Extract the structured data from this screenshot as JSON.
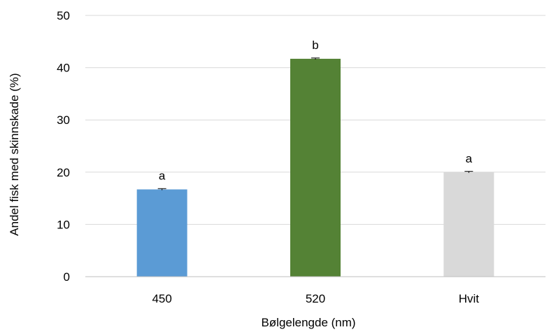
{
  "chart_data": {
    "type": "bar",
    "title": "",
    "xlabel": "Bølgelengde (nm)",
    "ylabel": "Andel fisk med skinnskade (%)",
    "ylim": [
      0,
      50
    ],
    "yticks": [
      0,
      10,
      20,
      30,
      40,
      50
    ],
    "grid": true,
    "categories": [
      "450",
      "520",
      "Hvit"
    ],
    "values": [
      16.7,
      41.7,
      20.0
    ],
    "errors": [
      0.15,
      0.15,
      0.15
    ],
    "significance_labels": [
      "a",
      "b",
      "a"
    ],
    "colors": [
      "#5b9bd5",
      "#548235",
      "#d9d9d9"
    ]
  }
}
